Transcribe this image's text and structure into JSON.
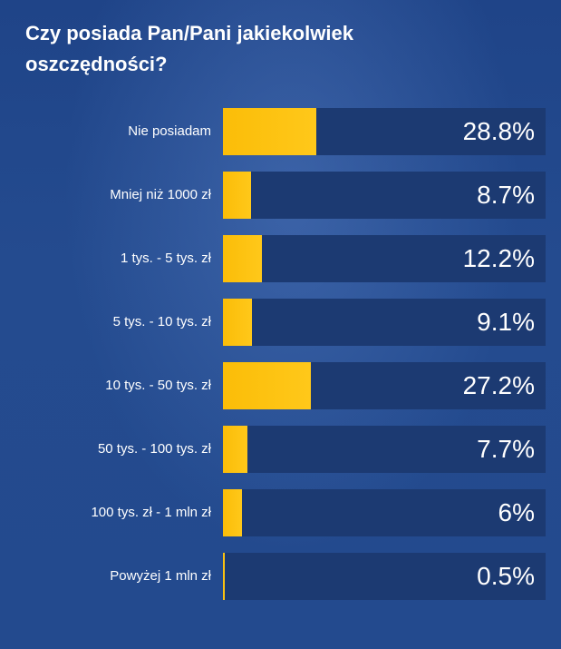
{
  "chart_data": {
    "type": "bar",
    "orientation": "horizontal",
    "title": "Czy posiada Pan/Pani jakiekolwiek oszczędności?",
    "categories": [
      "Nie posiadam",
      "Mniej niż 1000 zł",
      "1 tys. - 5 tys. zł",
      "5 tys. - 10 tys. zł",
      "10 tys. - 50 tys. zł",
      "50 tys. - 100 tys. zł",
      "100 tys. zł - 1 mln zł",
      "Powyżej 1 mln zł"
    ],
    "values": [
      28.8,
      8.7,
      12.2,
      9.1,
      27.2,
      7.7,
      6,
      0.5
    ],
    "value_labels": [
      "28.8%",
      "8.7%",
      "12.2%",
      "9.1%",
      "27.2%",
      "7.7%",
      "6%",
      "0.5%"
    ],
    "xlim": [
      0,
      100
    ],
    "grid": false,
    "legend": "none",
    "colors": {
      "bar": "#fbbd08",
      "track": "#1c3a72",
      "background": "#234a8e",
      "text": "#ffffff"
    }
  }
}
